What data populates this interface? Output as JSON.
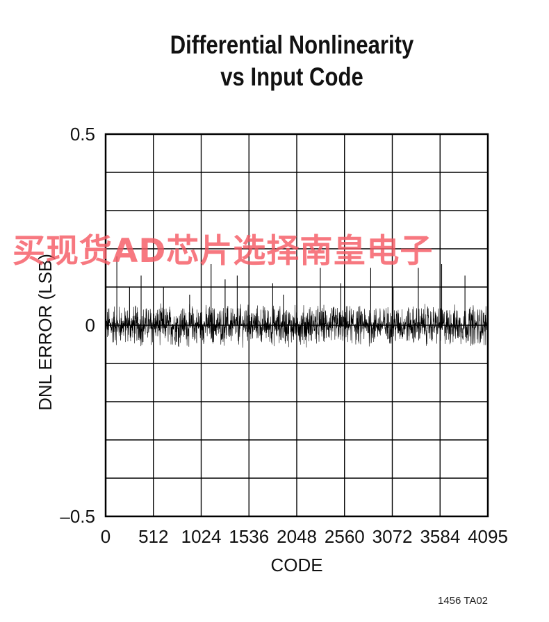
{
  "chart_data": {
    "type": "line",
    "title": [
      "Differential Nonlinearity",
      "vs Input Code"
    ],
    "xlabel": "CODE",
    "ylabel": "DNL ERROR (LSB)",
    "xlim": [
      0,
      4095
    ],
    "ylim": [
      -0.5,
      0.5
    ],
    "x_ticks": [
      0,
      512,
      1024,
      1536,
      2048,
      2560,
      3072,
      3584,
      4095
    ],
    "x_tick_labels": [
      "0",
      "512",
      "1024",
      "1536",
      "2048",
      "2560",
      "3072",
      "3584",
      "4095"
    ],
    "y_ticks": [
      -0.5,
      0,
      0.5
    ],
    "y_tick_labels": [
      "–0.5",
      "0",
      "0.5"
    ],
    "grid": true,
    "series": [
      {
        "noise_band": [
          -0.05,
          0.05
        ],
        "spikes": [
          {
            "x": 120,
            "y": 0.18
          },
          {
            "x": 256,
            "y": 0.1
          },
          {
            "x": 380,
            "y": 0.13
          },
          {
            "x": 620,
            "y": 0.1
          },
          {
            "x": 900,
            "y": 0.08
          },
          {
            "x": 1130,
            "y": 0.16
          },
          {
            "x": 1280,
            "y": 0.12
          },
          {
            "x": 1410,
            "y": 0.13
          },
          {
            "x": 1790,
            "y": 0.11
          },
          {
            "x": 1905,
            "y": 0.08
          },
          {
            "x": 2050,
            "y": 0.1
          },
          {
            "x": 2300,
            "y": 0.15
          },
          {
            "x": 2520,
            "y": 0.11
          },
          {
            "x": 2840,
            "y": 0.15
          },
          {
            "x": 3080,
            "y": 0.1
          },
          {
            "x": 3350,
            "y": 0.15
          },
          {
            "x": 3600,
            "y": 0.16
          },
          {
            "x": 3850,
            "y": 0.13
          }
        ]
      }
    ]
  },
  "figure_code": "1456 TA02",
  "watermark": "买现货AD芯片选择南皇电子",
  "colors": {
    "trace": "#000000",
    "grid": "#000000",
    "watermark": "#f55a64"
  }
}
